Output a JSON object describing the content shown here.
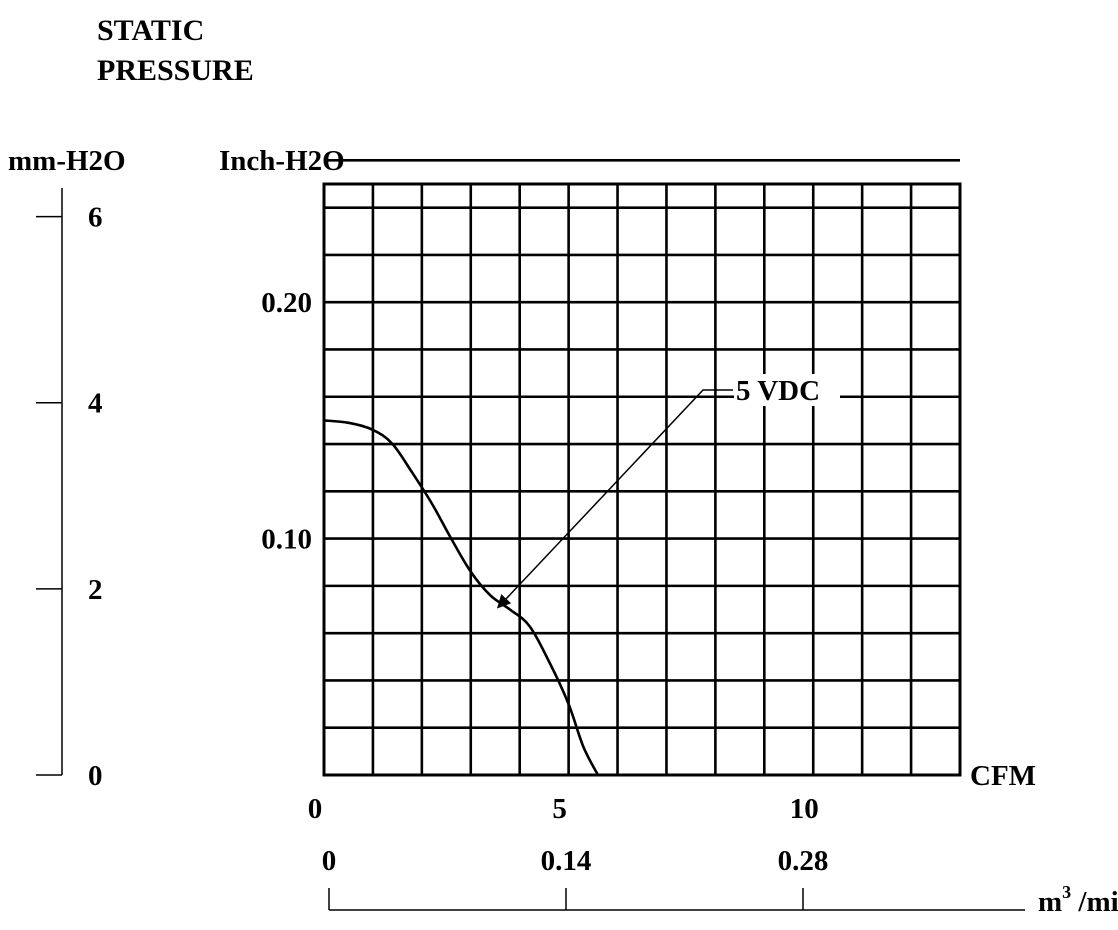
{
  "chart_data": {
    "type": "line",
    "title": "STATIC\nPRESSURE",
    "title_lines": [
      "STATIC",
      "PRESSURE"
    ],
    "primary_y": {
      "label": "Inch-H2O",
      "min": 0,
      "max": 0.25,
      "ticks": [
        {
          "value": 0.1,
          "label": "0.10"
        },
        {
          "value": 0.2,
          "label": "0.20"
        }
      ]
    },
    "secondary_y": {
      "label": "mm-H2O",
      "min": 0,
      "max": 6.35,
      "ticks": [
        {
          "value": 0,
          "label": "0"
        },
        {
          "value": 2,
          "label": "2"
        },
        {
          "value": 4,
          "label": "4"
        },
        {
          "value": 6,
          "label": "6"
        }
      ]
    },
    "primary_x": {
      "label": "CFM",
      "min": 0,
      "max": 13,
      "ticks": [
        {
          "value": 0,
          "label": "0"
        },
        {
          "value": 5,
          "label": "5"
        },
        {
          "value": 10,
          "label": "10"
        }
      ]
    },
    "secondary_x": {
      "label_base": "m",
      "label_sup": "3",
      "label_rest": " /min",
      "ticks": [
        {
          "value": 0,
          "label": "0"
        },
        {
          "value": 0.14,
          "label": "0.14"
        },
        {
          "value": 0.28,
          "label": "0.28"
        }
      ]
    },
    "grid": true,
    "grid_x_step": 1,
    "grid_y_step": 0.02,
    "series": [
      {
        "name": "5 VDC",
        "x": [
          0,
          0.5,
          1.0,
          1.4,
          1.8,
          2.2,
          2.6,
          3.0,
          3.4,
          3.8,
          4.2,
          4.6,
          5.0,
          5.3,
          5.6
        ],
        "y": [
          0.15,
          0.149,
          0.146,
          0.14,
          0.128,
          0.115,
          0.1,
          0.086,
          0.076,
          0.07,
          0.063,
          0.048,
          0.03,
          0.012,
          0.0
        ]
      }
    ],
    "annotations": [
      {
        "text": "5 VDC",
        "series": "5 VDC",
        "point_x": 3.8,
        "point_y": 0.07
      }
    ]
  }
}
